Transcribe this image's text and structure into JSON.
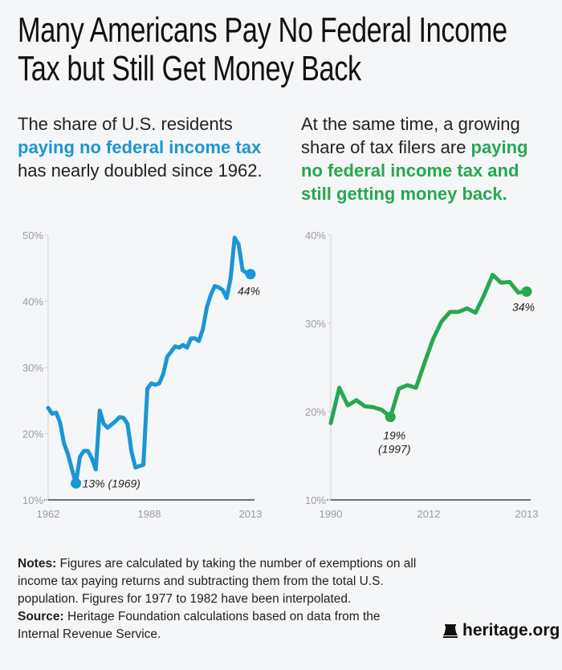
{
  "title_line1": "Many Americans Pay No Federal Income",
  "title_line2": "Tax but Still Get Money Back",
  "left_subtitle": {
    "pre": "The share of U.S. residents ",
    "highlight": "paying no federal income tax",
    "post": " has nearly doubled since 1962."
  },
  "right_subtitle": {
    "pre": "At the same time, a growing share of tax filers are ",
    "highlight": "paying no federal income tax and still getting money back."
  },
  "colors": {
    "left_series": "#1a96d4",
    "right_series": "#27a84f",
    "background": "#f5f6f8"
  },
  "chart_data": [
    {
      "type": "line",
      "x_tick_labels": [
        "1962",
        "1988",
        "2013"
      ],
      "y_tick_labels": [
        "10%",
        "20%",
        "30%",
        "40%",
        "50%"
      ],
      "ylim": [
        10,
        50
      ],
      "xlim": [
        1962,
        2013
      ],
      "grid": false,
      "x": [
        1962,
        1963,
        1964,
        1965,
        1966,
        1967,
        1968,
        1969,
        1970,
        1971,
        1972,
        1973,
        1974,
        1975,
        1976,
        1977,
        1978,
        1979,
        1980,
        1981,
        1982,
        1983,
        1984,
        1985,
        1986,
        1987,
        1988,
        1989,
        1990,
        1991,
        1992,
        1993,
        1994,
        1995,
        1996,
        1997,
        1998,
        1999,
        2000,
        2001,
        2002,
        2003,
        2004,
        2005,
        2006,
        2007,
        2008,
        2009,
        2010,
        2011,
        2012,
        2013
      ],
      "values": [
        23.9,
        23.0,
        23.2,
        21.7,
        18.5,
        16.9,
        14.6,
        12.5,
        16.5,
        17.4,
        17.4,
        16.3,
        14.6,
        23.5,
        21.5,
        20.9,
        21.4,
        21.9,
        22.5,
        22.4,
        21.5,
        17.3,
        14.9,
        15.1,
        15.3,
        26.8,
        27.6,
        27.4,
        27.6,
        29.0,
        31.6,
        32.4,
        33.2,
        33.0,
        33.4,
        33.0,
        34.4,
        34.4,
        34.0,
        35.8,
        39.1,
        41.0,
        42.3,
        42.1,
        41.7,
        40.5,
        43.5,
        49.6,
        48.6,
        44.7,
        44.3,
        44.1
      ],
      "annotations": [
        {
          "x": 1969,
          "y": 12.5,
          "text": "13% (1969)"
        },
        {
          "x": 2013,
          "y": 44.1,
          "text": "44%"
        }
      ]
    },
    {
      "type": "line",
      "x_tick_labels": [
        "1990",
        "2012",
        "2013"
      ],
      "y_tick_labels": [
        "10%",
        "20%",
        "30%",
        "40%"
      ],
      "ylim": [
        10,
        40
      ],
      "xlim": [
        1990,
        2013
      ],
      "grid": false,
      "x": [
        1990,
        1991,
        1992,
        1993,
        1994,
        1995,
        1996,
        1997,
        1998,
        1999,
        2000,
        2001,
        2002,
        2003,
        2004,
        2005,
        2006,
        2007,
        2008,
        2009,
        2010,
        2011,
        2012,
        2013
      ],
      "values": [
        18.7,
        22.7,
        20.7,
        21.3,
        20.6,
        20.5,
        20.2,
        19.4,
        22.6,
        23.0,
        22.7,
        25.5,
        28.2,
        30.2,
        31.3,
        31.3,
        31.7,
        31.2,
        33.2,
        35.5,
        34.6,
        34.7,
        33.5,
        33.6
      ],
      "annotations": [
        {
          "x": 1997,
          "y": 19.4,
          "text": "19%",
          "text2": "(1997)"
        },
        {
          "x": 2013,
          "y": 33.6,
          "text": "34%"
        }
      ]
    }
  ],
  "notes": {
    "notes_label": "Notes:",
    "notes_text": " Figures are calculated by taking the number of exemptions on all income tax paying returns and subtracting them from the total U.S. population. Figures for 1977 to 1982 have been interpolated.",
    "source_label": "Source:",
    "source_text": " Heritage Foundation calculations based on data from the Internal Revenue Service."
  },
  "logo": {
    "text": "heritage.org",
    "icon": "liberty-bell-icon"
  }
}
